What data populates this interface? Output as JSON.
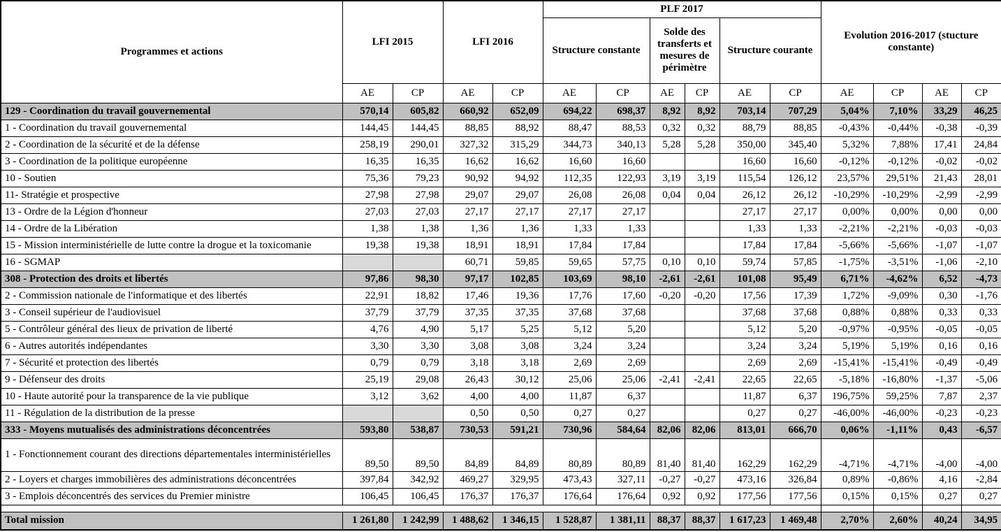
{
  "table": {
    "headers": {
      "programmes": "Programmes et actions",
      "lfi2015": "LFI 2015",
      "lfi2016": "LFI 2016",
      "plf2017": "PLF 2017",
      "structure_constante": "Structure constante",
      "solde_transferts": "Solde des transferts et mesures de périmètre",
      "structure_courante": "Structure courante",
      "evolution": "Evolution 2016-2017 (stucture constante)",
      "ae": "AE",
      "cp": "CP"
    },
    "rows": [
      {
        "style": "program",
        "label": "129 - Coordination du travail gouvernemental",
        "values": [
          "570,14",
          "605,82",
          "660,92",
          "652,09",
          "694,22",
          "698,37",
          "8,92",
          "8,92",
          "703,14",
          "707,29",
          "5,04%",
          "7,10%",
          "33,29",
          "46,25"
        ]
      },
      {
        "style": "action",
        "label": "1 - Coordination du travail gouvernemental",
        "values": [
          "144,45",
          "144,45",
          "88,85",
          "88,92",
          "88,47",
          "88,53",
          "0,32",
          "0,32",
          "88,79",
          "88,85",
          "-0,43%",
          "-0,44%",
          "-0,38",
          "-0,39"
        ]
      },
      {
        "style": "action",
        "label": "2 - Coordination de la sécurité et de la défense",
        "values": [
          "258,19",
          "290,01",
          "327,32",
          "315,29",
          "344,73",
          "340,13",
          "5,28",
          "5,28",
          "350,00",
          "345,40",
          "5,32%",
          "7,88%",
          "17,41",
          "24,84"
        ]
      },
      {
        "style": "action",
        "label": "3 - Coordination de la politique européenne",
        "values": [
          "16,35",
          "16,35",
          "16,62",
          "16,62",
          "16,60",
          "16,60",
          "",
          "",
          "16,60",
          "16,60",
          "-0,12%",
          "-0,12%",
          "-0,02",
          "-0,02"
        ]
      },
      {
        "style": "action",
        "label": "10 - Soutien",
        "values": [
          "75,36",
          "79,23",
          "90,92",
          "94,92",
          "112,35",
          "122,93",
          "3,19",
          "3,19",
          "115,54",
          "126,12",
          "23,57%",
          "29,51%",
          "21,43",
          "28,01"
        ]
      },
      {
        "style": "action",
        "label": "11- Stratégie et prospective",
        "values": [
          "27,98",
          "27,98",
          "29,07",
          "29,07",
          "26,08",
          "26,08",
          "0,04",
          "0,04",
          "26,12",
          "26,12",
          "-10,29%",
          "-10,29%",
          "-2,99",
          "-2,99"
        ]
      },
      {
        "style": "action",
        "label": "13 - Ordre de la Légion d'honneur",
        "values": [
          "27,03",
          "27,03",
          "27,17",
          "27,17",
          "27,17",
          "27,17",
          "",
          "",
          "27,17",
          "27,17",
          "0,00%",
          "0,00%",
          "0,00",
          "0,00"
        ]
      },
      {
        "style": "action",
        "label": "14 - Ordre de la Libération",
        "values": [
          "1,38",
          "1,38",
          "1,36",
          "1,36",
          "1,33",
          "1,33",
          "",
          "",
          "1,33",
          "1,33",
          "-2,21%",
          "-2,21%",
          "-0,03",
          "-0,03"
        ]
      },
      {
        "style": "action",
        "label": "15 - Mission interministérielle de lutte contre la drogue et la toxicomanie",
        "values": [
          "19,38",
          "19,38",
          "18,91",
          "18,91",
          "17,84",
          "17,84",
          "",
          "",
          "17,84",
          "17,84",
          "-5,66%",
          "-5,66%",
          "-1,07",
          "-1,07"
        ]
      },
      {
        "style": "action",
        "label": "16 - SGMAP",
        "shaded": [
          0,
          1
        ],
        "values": [
          "",
          "",
          "60,71",
          "59,85",
          "59,65",
          "57,75",
          "0,10",
          "0,10",
          "59,74",
          "57,85",
          "-1,75%",
          "-3,51%",
          "-1,06",
          "-2,10"
        ]
      },
      {
        "style": "program",
        "label": "308 - Protection des droits et libertés",
        "values": [
          "97,86",
          "98,30",
          "97,17",
          "102,85",
          "103,69",
          "98,10",
          "-2,61",
          "-2,61",
          "101,08",
          "95,49",
          "6,71%",
          "-4,62%",
          "6,52",
          "-4,73"
        ]
      },
      {
        "style": "action",
        "label": "2 - Commission nationale de l'informatique et des libertés",
        "values": [
          "22,91",
          "18,82",
          "17,46",
          "19,36",
          "17,76",
          "17,60",
          "-0,20",
          "-0,20",
          "17,56",
          "17,39",
          "1,72%",
          "-9,09%",
          "0,30",
          "-1,76"
        ]
      },
      {
        "style": "action",
        "label": "3 - Conseil supérieur de l'audiovisuel",
        "values": [
          "37,79",
          "37,79",
          "37,35",
          "37,35",
          "37,68",
          "37,68",
          "",
          "",
          "37,68",
          "37,68",
          "0,88%",
          "0,88%",
          "0,33",
          "0,33"
        ]
      },
      {
        "style": "action",
        "label": "5 - Contrôleur général des lieux de privation de liberté",
        "values": [
          "4,76",
          "4,90",
          "5,17",
          "5,25",
          "5,12",
          "5,20",
          "",
          "",
          "5,12",
          "5,20",
          "-0,97%",
          "-0,95%",
          "-0,05",
          "-0,05"
        ]
      },
      {
        "style": "action",
        "label": "6 - Autres autorités indépendantes",
        "values": [
          "3,30",
          "3,30",
          "3,08",
          "3,08",
          "3,24",
          "3,24",
          "",
          "",
          "3,24",
          "3,24",
          "5,19%",
          "5,19%",
          "0,16",
          "0,16"
        ]
      },
      {
        "style": "action",
        "label": "7 - Sécurité et protection des libertés",
        "values": [
          "0,79",
          "0,79",
          "3,18",
          "3,18",
          "2,69",
          "2,69",
          "",
          "",
          "2,69",
          "2,69",
          "-15,41%",
          "-15,41%",
          "-0,49",
          "-0,49"
        ]
      },
      {
        "style": "action",
        "label": "9 - Défenseur des droits",
        "values": [
          "25,19",
          "29,08",
          "26,43",
          "30,12",
          "25,06",
          "25,06",
          "-2,41",
          "-2,41",
          "22,65",
          "22,65",
          "-5,18%",
          "-16,80%",
          "-1,37",
          "-5,06"
        ]
      },
      {
        "style": "action",
        "label": "10 - Haute autorité pour la transparence de la vie publique",
        "values": [
          "3,12",
          "3,62",
          "4,00",
          "4,00",
          "11,87",
          "6,37",
          "",
          "",
          "11,87",
          "6,37",
          "196,75%",
          "59,25%",
          "7,87",
          "2,37"
        ]
      },
      {
        "style": "action",
        "label": "11 - Régulation de la distribution de la presse",
        "shaded": [
          0,
          1
        ],
        "values": [
          "",
          "",
          "0,50",
          "0,50",
          "0,27",
          "0,27",
          "",
          "",
          "0,27",
          "0,27",
          "-46,00%",
          "-46,00%",
          "-0,23",
          "-0,23"
        ]
      },
      {
        "style": "program",
        "label": "333 - Moyens mutualisés des administrations déconcentrées",
        "values": [
          "593,80",
          "538,87",
          "730,53",
          "591,21",
          "730,96",
          "584,64",
          "82,06",
          "82,06",
          "813,01",
          "666,70",
          "0,06%",
          "-1,11%",
          "0,43",
          "-6,57"
        ]
      },
      {
        "style": "action",
        "tall": true,
        "label": "1 - Fonctionnement courant des directions départementales interministérielles",
        "values": [
          "89,50",
          "89,50",
          "84,89",
          "84,89",
          "80,89",
          "80,89",
          "81,40",
          "81,40",
          "162,29",
          "162,29",
          "-4,71%",
          "-4,71%",
          "-4,00",
          "-4,00"
        ]
      },
      {
        "style": "action",
        "label": "2 - Loyers et charges immobilières des administrations déconcentrées",
        "values": [
          "397,84",
          "342,92",
          "469,27",
          "329,95",
          "473,43",
          "327,11",
          "-0,27",
          "-0,27",
          "473,16",
          "326,84",
          "0,89%",
          "-0,86%",
          "4,16",
          "-2,84"
        ]
      },
      {
        "style": "action",
        "label": "3 - Emplois déconcentrés des services du Premier ministre",
        "values": [
          "106,45",
          "106,45",
          "176,37",
          "176,37",
          "176,64",
          "176,64",
          "0,92",
          "0,92",
          "177,56",
          "177,56",
          "0,15%",
          "0,15%",
          "0,27",
          "0,27"
        ]
      },
      {
        "style": "spacer",
        "label": "",
        "values": []
      },
      {
        "style": "total",
        "label": "Total mission",
        "values": [
          "1 261,80",
          "1 242,99",
          "1 488,62",
          "1 346,15",
          "1 528,87",
          "1 381,11",
          "88,37",
          "88,37",
          "1 617,23",
          "1 469,48",
          "2,70%",
          "2,60%",
          "40,24",
          "34,95"
        ]
      }
    ]
  },
  "colors": {
    "group_row_bg": "#c0c0c0",
    "shaded_cell_bg": "#d9d9d9",
    "border": "#000000",
    "background": "#ffffff"
  }
}
